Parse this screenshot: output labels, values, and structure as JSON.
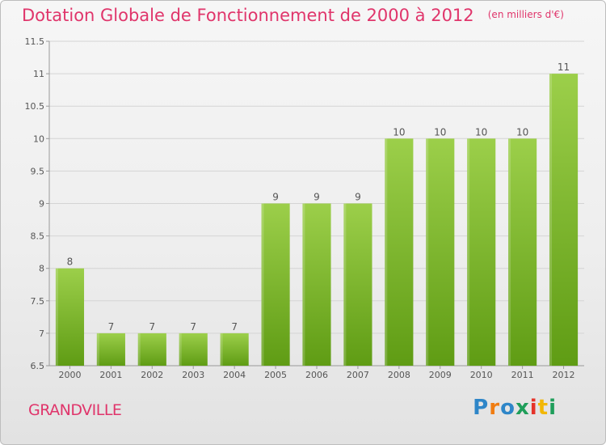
{
  "header": {
    "title": "Dotation Globale de Fonctionnement de 2000 à 2012",
    "subtitle": "(en milliers d'€)"
  },
  "footer": {
    "commune": "GRANDVILLE",
    "logo_text": "Proxiti"
  },
  "colors": {
    "title": "#e0356b",
    "bar_top": "#9ccf4a",
    "bar_bottom": "#5f9c14",
    "grid": "#d4d4d4",
    "axis": "#9a9a9a"
  },
  "chart_data": {
    "type": "bar",
    "title": "Dotation Globale de Fonctionnement de 2000 à 2012",
    "xlabel": "",
    "ylabel": "",
    "categories": [
      "2000",
      "2001",
      "2002",
      "2003",
      "2004",
      "2005",
      "2006",
      "2007",
      "2008",
      "2009",
      "2010",
      "2011",
      "2012"
    ],
    "values": [
      8,
      7,
      7,
      7,
      7,
      9,
      9,
      9,
      10,
      10,
      10,
      10,
      11
    ],
    "ylim": [
      6.5,
      11.5
    ],
    "yticks": [
      "6.5",
      "7",
      "7.5",
      "8",
      "8.5",
      "9",
      "9.5",
      "10",
      "10.5",
      "11",
      "11.5"
    ],
    "data_labels": [
      "8",
      "7",
      "7",
      "7",
      "7",
      "9",
      "9",
      "9",
      "10",
      "10",
      "10",
      "10",
      "11"
    ],
    "grid": true,
    "legend": "none"
  }
}
